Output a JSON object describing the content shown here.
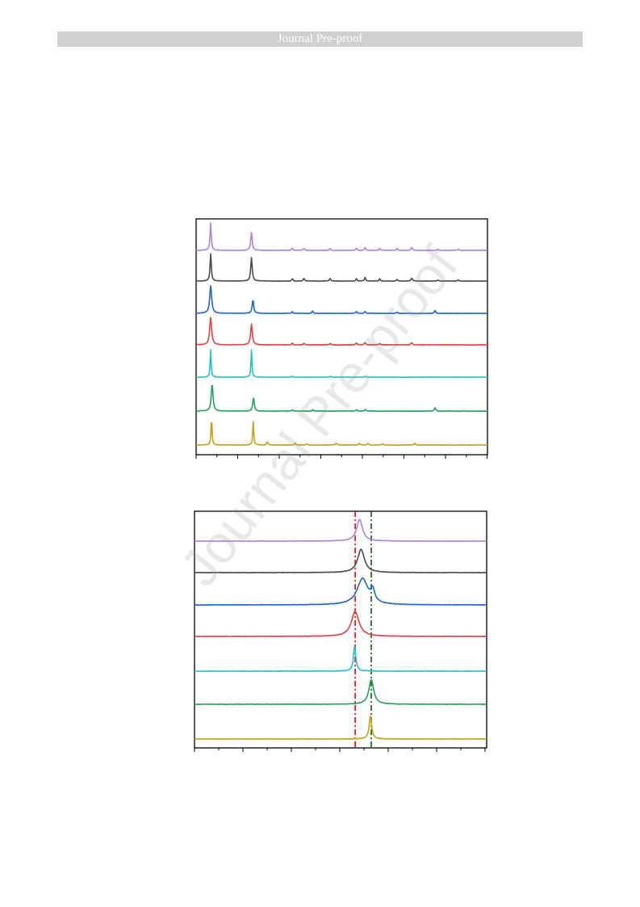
{
  "header": {
    "banner_text": "Journal Pre-proof"
  },
  "watermark": {
    "text": "Journal Pre-proof"
  },
  "colors": {
    "series": [
      "#b07fe0",
      "#4a4a4a",
      "#1a66cc",
      "#e04040",
      "#1ec4cc",
      "#24a05a",
      "#c9a010"
    ],
    "reference_line_1": "#e00000",
    "reference_line_2": "#006400"
  },
  "chart_data": [
    {
      "type": "line",
      "title": "",
      "xlabel": "",
      "ylabel": "",
      "xlim": [
        0,
        100
      ],
      "stacked_offset": true,
      "grid": false,
      "series": [
        {
          "color": "#b07fe0",
          "peaks": [
            {
              "x": 5,
              "h": 1.0,
              "w": 0.25
            },
            {
              "x": 19,
              "h": 0.65,
              "w": 0.3
            },
            {
              "x": 33,
              "h": 0.08,
              "w": 0.25
            },
            {
              "x": 37,
              "h": 0.08,
              "w": 0.25
            },
            {
              "x": 46,
              "h": 0.07,
              "w": 0.25
            },
            {
              "x": 55,
              "h": 0.08,
              "w": 0.25
            },
            {
              "x": 58,
              "h": 0.1,
              "w": 0.25
            },
            {
              "x": 63,
              "h": 0.07,
              "w": 0.25
            },
            {
              "x": 69,
              "h": 0.07,
              "w": 0.25
            },
            {
              "x": 74,
              "h": 0.1,
              "w": 0.3
            },
            {
              "x": 83,
              "h": 0.04,
              "w": 0.25
            },
            {
              "x": 90,
              "h": 0.04,
              "w": 0.25
            }
          ]
        },
        {
          "color": "#4a4a4a",
          "peaks": [
            {
              "x": 5,
              "h": 1.0,
              "w": 0.25
            },
            {
              "x": 19,
              "h": 0.85,
              "w": 0.3
            },
            {
              "x": 33,
              "h": 0.08,
              "w": 0.25
            },
            {
              "x": 37,
              "h": 0.1,
              "w": 0.25
            },
            {
              "x": 46,
              "h": 0.1,
              "w": 0.25
            },
            {
              "x": 55,
              "h": 0.09,
              "w": 0.25
            },
            {
              "x": 58,
              "h": 0.13,
              "w": 0.25
            },
            {
              "x": 63,
              "h": 0.08,
              "w": 0.25
            },
            {
              "x": 69,
              "h": 0.06,
              "w": 0.25
            },
            {
              "x": 74,
              "h": 0.1,
              "w": 0.3
            },
            {
              "x": 83,
              "h": 0.04,
              "w": 0.25
            },
            {
              "x": 90,
              "h": 0.04,
              "w": 0.25
            }
          ]
        },
        {
          "color": "#1a66cc",
          "peaks": [
            {
              "x": 5,
              "h": 1.0,
              "w": 0.4
            },
            {
              "x": 19.5,
              "h": 0.5,
              "w": 0.3
            },
            {
              "x": 33,
              "h": 0.06,
              "w": 0.25
            },
            {
              "x": 40,
              "h": 0.08,
              "w": 0.25
            },
            {
              "x": 55,
              "h": 0.06,
              "w": 0.25
            },
            {
              "x": 58,
              "h": 0.07,
              "w": 0.25
            },
            {
              "x": 69,
              "h": 0.05,
              "w": 0.25
            },
            {
              "x": 82,
              "h": 0.1,
              "w": 0.25
            }
          ]
        },
        {
          "color": "#e04040",
          "peaks": [
            {
              "x": 5,
              "h": 1.0,
              "w": 0.4
            },
            {
              "x": 19,
              "h": 0.75,
              "w": 0.35
            },
            {
              "x": 33,
              "h": 0.06,
              "w": 0.25
            },
            {
              "x": 37,
              "h": 0.06,
              "w": 0.25
            },
            {
              "x": 46,
              "h": 0.05,
              "w": 0.25
            },
            {
              "x": 55,
              "h": 0.07,
              "w": 0.25
            },
            {
              "x": 58,
              "h": 0.09,
              "w": 0.25
            },
            {
              "x": 63,
              "h": 0.05,
              "w": 0.25
            },
            {
              "x": 74,
              "h": 0.08,
              "w": 0.3
            }
          ]
        },
        {
          "color": "#1ec4cc",
          "peaks": [
            {
              "x": 5,
              "h": 1.0,
              "w": 0.2
            },
            {
              "x": 19,
              "h": 1.0,
              "w": 0.2
            },
            {
              "x": 33,
              "h": 0.03,
              "w": 0.25
            },
            {
              "x": 46,
              "h": 0.03,
              "w": 0.25
            },
            {
              "x": 58,
              "h": 0.03,
              "w": 0.25
            }
          ]
        },
        {
          "color": "#24a05a",
          "peaks": [
            {
              "x": 5.5,
              "h": 1.0,
              "w": 0.35
            },
            {
              "x": 19.7,
              "h": 0.5,
              "w": 0.3
            },
            {
              "x": 33,
              "h": 0.05,
              "w": 0.25
            },
            {
              "x": 40,
              "h": 0.05,
              "w": 0.25
            },
            {
              "x": 55,
              "h": 0.05,
              "w": 0.25
            },
            {
              "x": 58,
              "h": 0.06,
              "w": 0.25
            },
            {
              "x": 82,
              "h": 0.12,
              "w": 0.25
            }
          ]
        },
        {
          "color": "#c9a010",
          "peaks": [
            {
              "x": 5.3,
              "h": 1.0,
              "w": 0.2
            },
            {
              "x": 19.6,
              "h": 0.85,
              "w": 0.2
            },
            {
              "x": 24.5,
              "h": 0.12,
              "w": 0.25
            },
            {
              "x": 34,
              "h": 0.07,
              "w": 0.25
            },
            {
              "x": 38,
              "h": 0.05,
              "w": 0.25
            },
            {
              "x": 48,
              "h": 0.07,
              "w": 0.25
            },
            {
              "x": 56,
              "h": 0.06,
              "w": 0.25
            },
            {
              "x": 59,
              "h": 0.07,
              "w": 0.25
            },
            {
              "x": 64,
              "h": 0.05,
              "w": 0.25
            },
            {
              "x": 75,
              "h": 0.06,
              "w": 0.3
            }
          ]
        }
      ]
    },
    {
      "type": "line",
      "title": "",
      "xlabel": "",
      "ylabel": "",
      "xlim": [
        0,
        100
      ],
      "stacked_offset": true,
      "grid": false,
      "reference_lines": [
        {
          "x": 55,
          "style": "dash-dot",
          "color": "#e00000"
        },
        {
          "x": 60.5,
          "style": "dash-dot",
          "color": "#006400"
        }
      ],
      "series": [
        {
          "color": "#b07fe0",
          "peaks": [
            {
              "x": 56.5,
              "h": 0.75,
              "w": 1.2
            }
          ]
        },
        {
          "color": "#4a4a4a",
          "peaks": [
            {
              "x": 57,
              "h": 0.8,
              "w": 1.4
            }
          ]
        },
        {
          "color": "#1a66cc",
          "peaks": [
            {
              "x": 57.5,
              "h": 0.9,
              "w": 2.2
            },
            {
              "x": 61,
              "h": 0.4,
              "w": 0.8
            }
          ]
        },
        {
          "color": "#e04040",
          "peaks": [
            {
              "x": 55,
              "h": 0.85,
              "w": 1.6
            }
          ]
        },
        {
          "color": "#1ec4cc",
          "peaks": [
            {
              "x": 54.8,
              "h": 0.85,
              "w": 0.5
            }
          ]
        },
        {
          "color": "#24a05a",
          "peaks": [
            {
              "x": 60.5,
              "h": 0.85,
              "w": 1.0
            }
          ]
        },
        {
          "color": "#c9a010",
          "peaks": [
            {
              "x": 60.2,
              "h": 0.8,
              "w": 0.5
            }
          ]
        }
      ]
    }
  ]
}
